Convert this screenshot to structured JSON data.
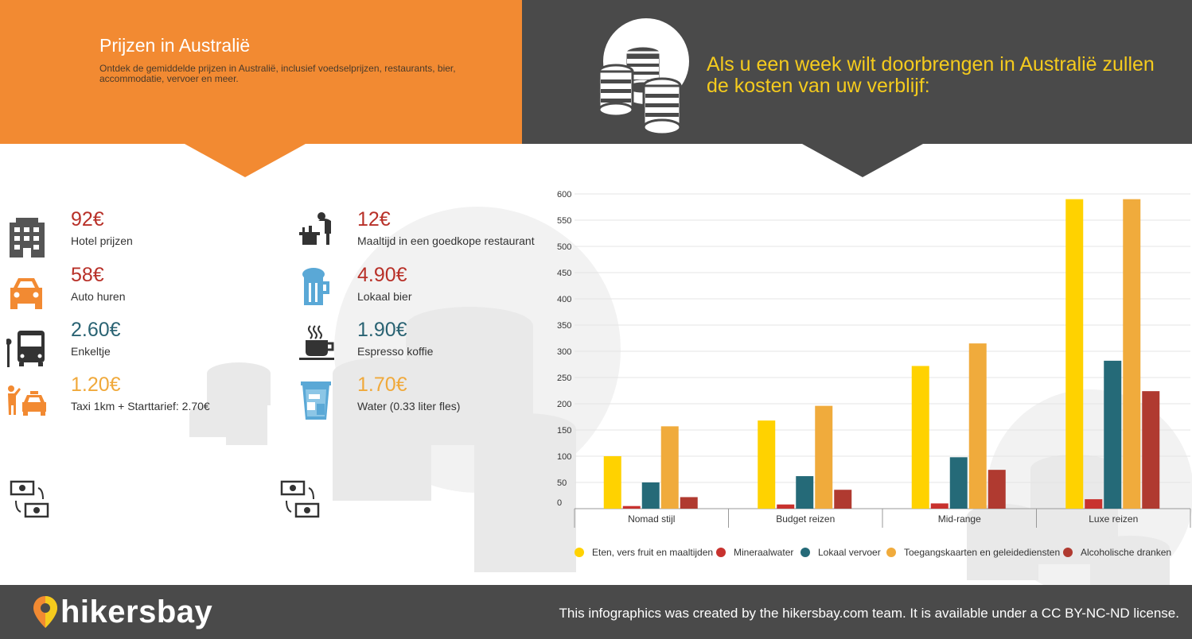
{
  "header": {
    "title": "Prijzen in Australië",
    "subtitle": "Ontdek de gemiddelde prijzen in Australië, inclusief voedselprijzen, restaurants, bier, accommodatie, vervoer en meer.",
    "headline": "Als u een week wilt doorbrengen in Australië zullen de kosten van uw verblijf:"
  },
  "prices_left": [
    {
      "price": "92€",
      "label": "Hotel prijzen",
      "icon": "hotel-icon",
      "color": "#b83028"
    },
    {
      "price": "58€",
      "label": "Auto huren",
      "icon": "car-icon",
      "color": "#b83028"
    },
    {
      "price": "2.60€",
      "label": "Enkeltje",
      "icon": "bus-icon",
      "color": "#2a6373"
    },
    {
      "price": "1.20€",
      "label": "Taxi 1km + Starttarief: 2.70€",
      "icon": "taxi-icon",
      "color": "#f0a93b"
    }
  ],
  "prices_right": [
    {
      "price": "12€",
      "label": "Maaltijd in een goedkope restaurant",
      "icon": "restaurant-icon",
      "color": "#b83028"
    },
    {
      "price": "4.90€",
      "label": "Lokaal bier",
      "icon": "beer-icon",
      "color": "#b83028"
    },
    {
      "price": "1.90€",
      "label": "Espresso koffie",
      "icon": "coffee-icon",
      "color": "#2a6373"
    },
    {
      "price": "1.70€",
      "label": "Water (0.33 liter fles)",
      "icon": "water-icon",
      "color": "#f0a93b"
    }
  ],
  "footer": {
    "logo": "hikersbay",
    "license": "This infographics was created by the hikersbay.com team. It is available under a CC BY-NC-ND license."
  },
  "chart_data": {
    "type": "bar",
    "categories": [
      "Nomad stijl",
      "Budget reizen",
      "Mid-range",
      "Luxe reizen"
    ],
    "series": [
      {
        "name": "Eten, vers fruit en maaltijden",
        "color": "#ffd200",
        "values": [
          100,
          168,
          272,
          590
        ]
      },
      {
        "name": "Mineraalwater",
        "color": "#c8322e",
        "values": [
          5,
          8,
          10,
          18
        ]
      },
      {
        "name": "Lokaal vervoer",
        "color": "#256a78",
        "values": [
          50,
          62,
          98,
          282
        ]
      },
      {
        "name": "Toegangskaarten en geleidediensten",
        "color": "#f0ab3c",
        "values": [
          157,
          196,
          315,
          590
        ]
      },
      {
        "name": "Alcoholische dranken",
        "color": "#b03a30",
        "values": [
          22,
          36,
          74,
          224
        ]
      }
    ],
    "yticks": [
      0,
      50,
      100,
      150,
      200,
      250,
      300,
      350,
      400,
      450,
      500,
      550,
      600
    ],
    "ylim": [
      0,
      600
    ]
  }
}
